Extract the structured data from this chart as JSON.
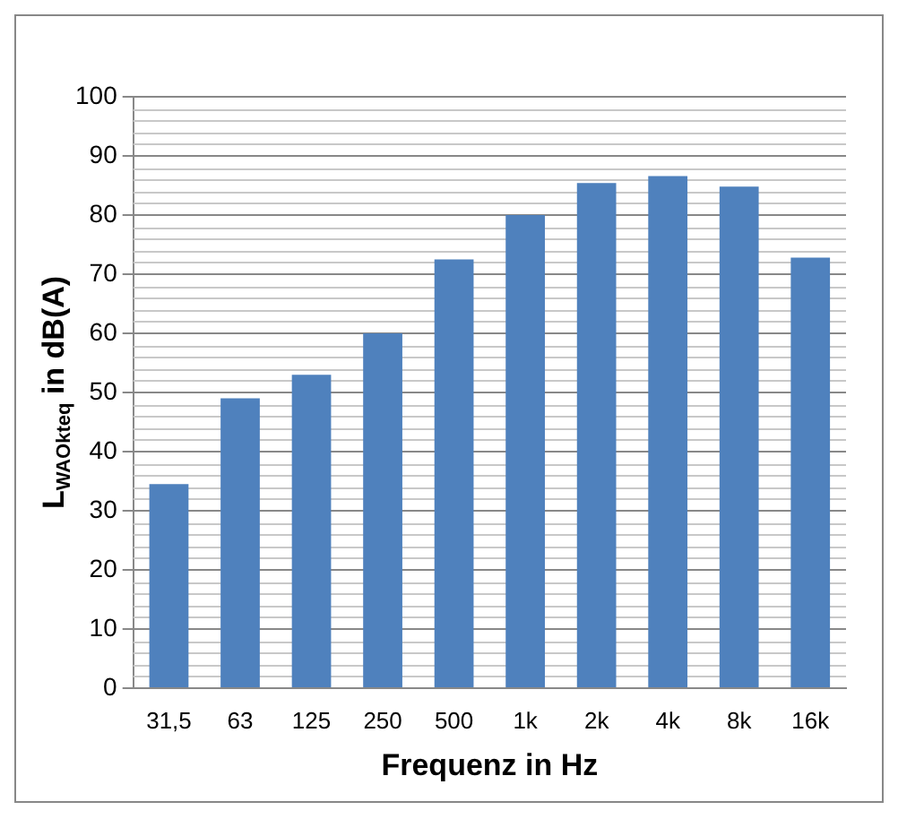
{
  "chart_data": {
    "type": "bar",
    "xlabel": "Frequenz in Hz",
    "ylabel": "L$_{WAOkteq}$ in dB(A)",
    "categories": [
      "31,5",
      "63",
      "125",
      "250",
      "500",
      "1k",
      "2k",
      "4k",
      "8k",
      "16k"
    ],
    "values": [
      34.5,
      49,
      53,
      60,
      72.5,
      80,
      85.4,
      86.6,
      84.8,
      72.8
    ],
    "color": "#4f81bd",
    "ylim": [
      0,
      100
    ],
    "yticks": [
      0,
      10,
      20,
      30,
      40,
      50,
      60,
      70,
      80,
      90,
      100
    ],
    "grid": "y"
  }
}
